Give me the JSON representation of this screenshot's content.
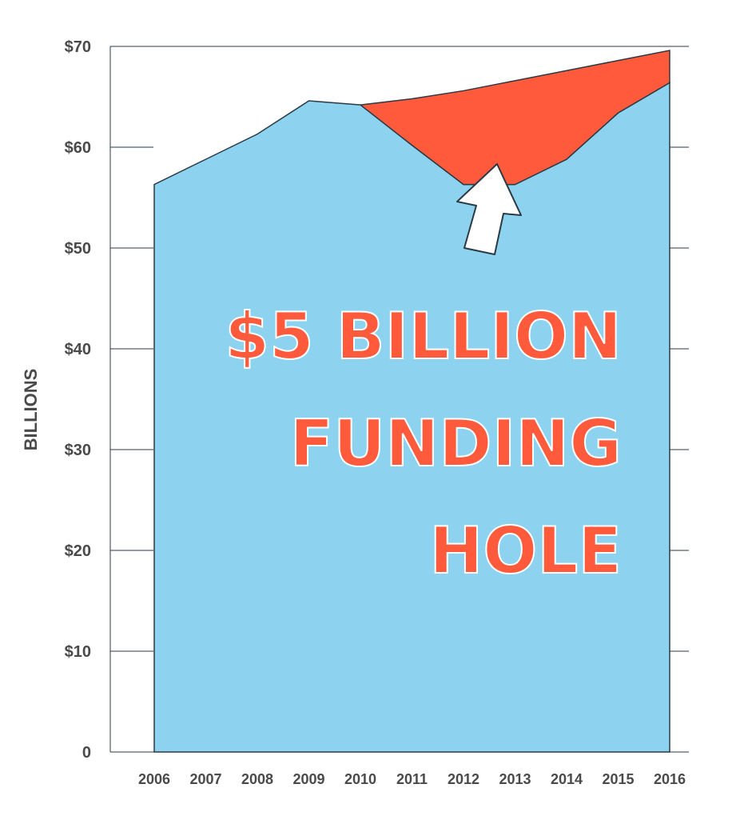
{
  "chart_data": {
    "type": "area",
    "title": "",
    "xlabel": "",
    "ylabel": "BILLIONS",
    "ylim": [
      0,
      70
    ],
    "yticks": [
      0,
      10,
      20,
      30,
      40,
      50,
      60,
      70
    ],
    "ytick_labels": [
      "0",
      "$10",
      "$20",
      "$30",
      "$40",
      "$50",
      "$60",
      "$70"
    ],
    "categories": [
      "2006",
      "2007",
      "2008",
      "2009",
      "2010",
      "2011",
      "2012",
      "2013",
      "2014",
      "2015",
      "2016"
    ],
    "series": [
      {
        "values": [
          56.3,
          58.8,
          61.3,
          64.6,
          64.2,
          60.2,
          56.3,
          56.3,
          58.8,
          63.4,
          66.4
        ]
      },
      {
        "values": [
          null,
          null,
          null,
          null,
          64.2,
          64.8,
          65.6,
          66.6,
          67.6,
          68.6,
          69.6
        ]
      }
    ],
    "colors": {
      "area": "#8dd3f0",
      "gap": "#ff5a3c",
      "outline": "#2b3a44",
      "annotation": "#ff5a3c",
      "arrow": "#ffffff"
    },
    "annotation": [
      "$5 BILLION",
      "FUNDING",
      "HOLE"
    ],
    "grid": false,
    "legend": "none"
  }
}
